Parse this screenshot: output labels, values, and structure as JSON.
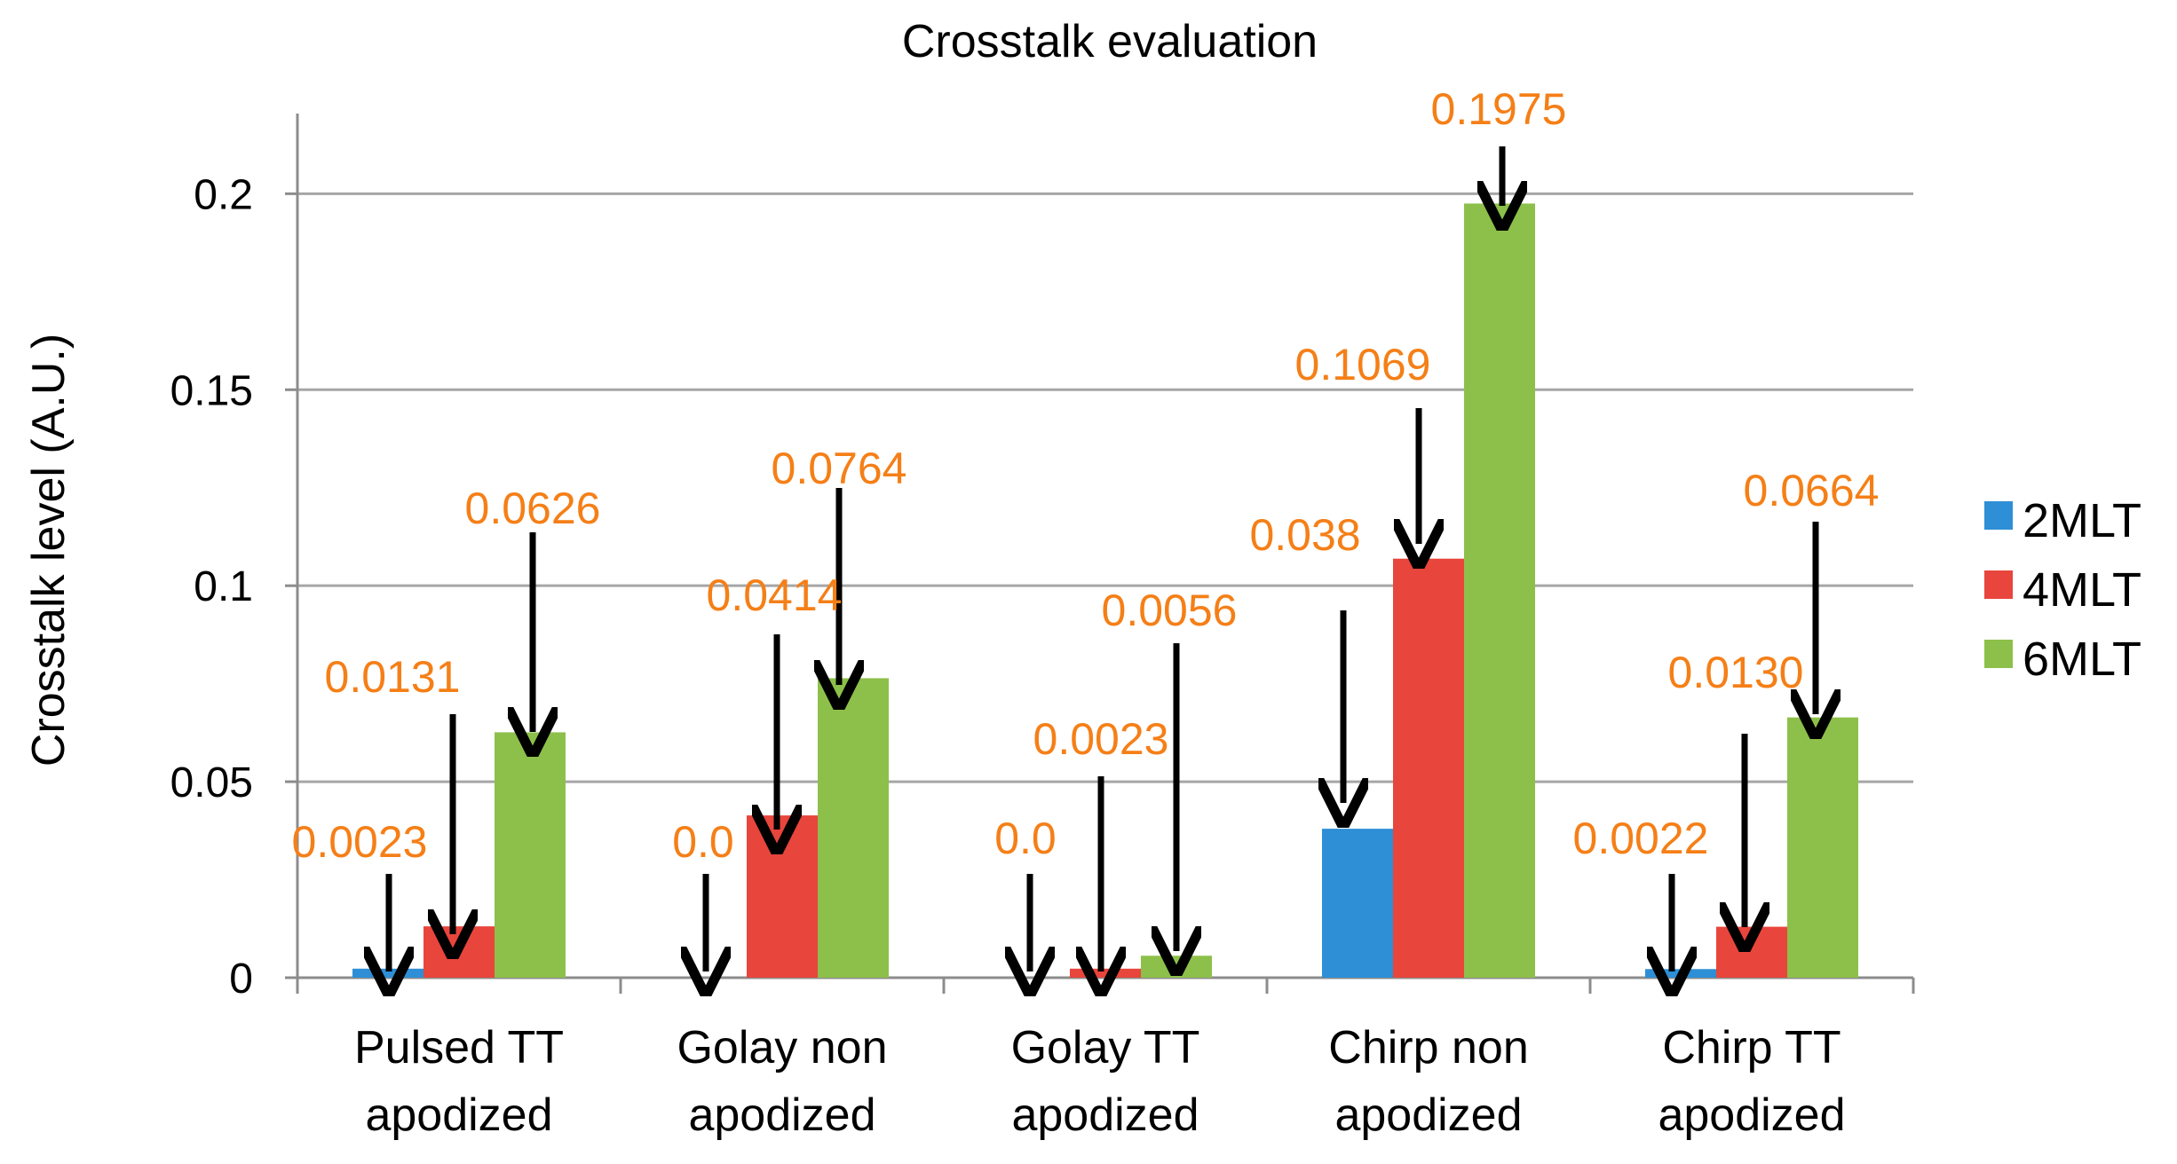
{
  "chart_data": {
    "type": "bar",
    "title": "Crosstalk evaluation",
    "xlabel": "",
    "ylabel": "Crosstalk level (A.U.)",
    "ylim": [
      0,
      0.22
    ],
    "yticks": [
      0,
      0.05,
      0.1,
      0.15,
      0.2
    ],
    "ytick_labels": [
      "0",
      "0.05",
      "0.1",
      "0.15",
      "0.2"
    ],
    "grid": true,
    "legend_position": "right",
    "categories": [
      [
        "Pulsed TT",
        "apodized"
      ],
      [
        "Golay non",
        "apodized"
      ],
      [
        "Golay TT",
        "apodized"
      ],
      [
        "Chirp non",
        "apodized"
      ],
      [
        "Chirp TT",
        "apodized"
      ]
    ],
    "series": [
      {
        "name": "2MLT",
        "color": "#2E8FD6",
        "values": [
          0.0023,
          0.0,
          0.0,
          0.038,
          0.0022
        ]
      },
      {
        "name": "4MLT",
        "color": "#E8453C",
        "values": [
          0.0131,
          0.0414,
          0.0023,
          0.1069,
          0.013
        ]
      },
      {
        "name": "6MLT",
        "color": "#8DC04A",
        "values": [
          0.0626,
          0.0764,
          0.0056,
          0.1975,
          0.0664
        ]
      }
    ],
    "annotations": [
      {
        "category": 0,
        "series": 0,
        "text": "0.0023"
      },
      {
        "category": 0,
        "series": 1,
        "text": "0.0131"
      },
      {
        "category": 0,
        "series": 2,
        "text": "0.0626"
      },
      {
        "category": 1,
        "series": 0,
        "text": "0.0"
      },
      {
        "category": 1,
        "series": 1,
        "text": "0.0414"
      },
      {
        "category": 1,
        "series": 2,
        "text": "0.0764"
      },
      {
        "category": 2,
        "series": 0,
        "text": "0.0"
      },
      {
        "category": 2,
        "series": 1,
        "text": "0.0023"
      },
      {
        "category": 2,
        "series": 2,
        "text": "0.0056"
      },
      {
        "category": 3,
        "series": 0,
        "text": "0.038"
      },
      {
        "category": 3,
        "series": 1,
        "text": "0.1069"
      },
      {
        "category": 3,
        "series": 2,
        "text": "0.1975"
      },
      {
        "category": 4,
        "series": 0,
        "text": "0.0022"
      },
      {
        "category": 4,
        "series": 1,
        "text": "0.0130"
      },
      {
        "category": 4,
        "series": 2,
        "text": "0.0664"
      }
    ]
  }
}
